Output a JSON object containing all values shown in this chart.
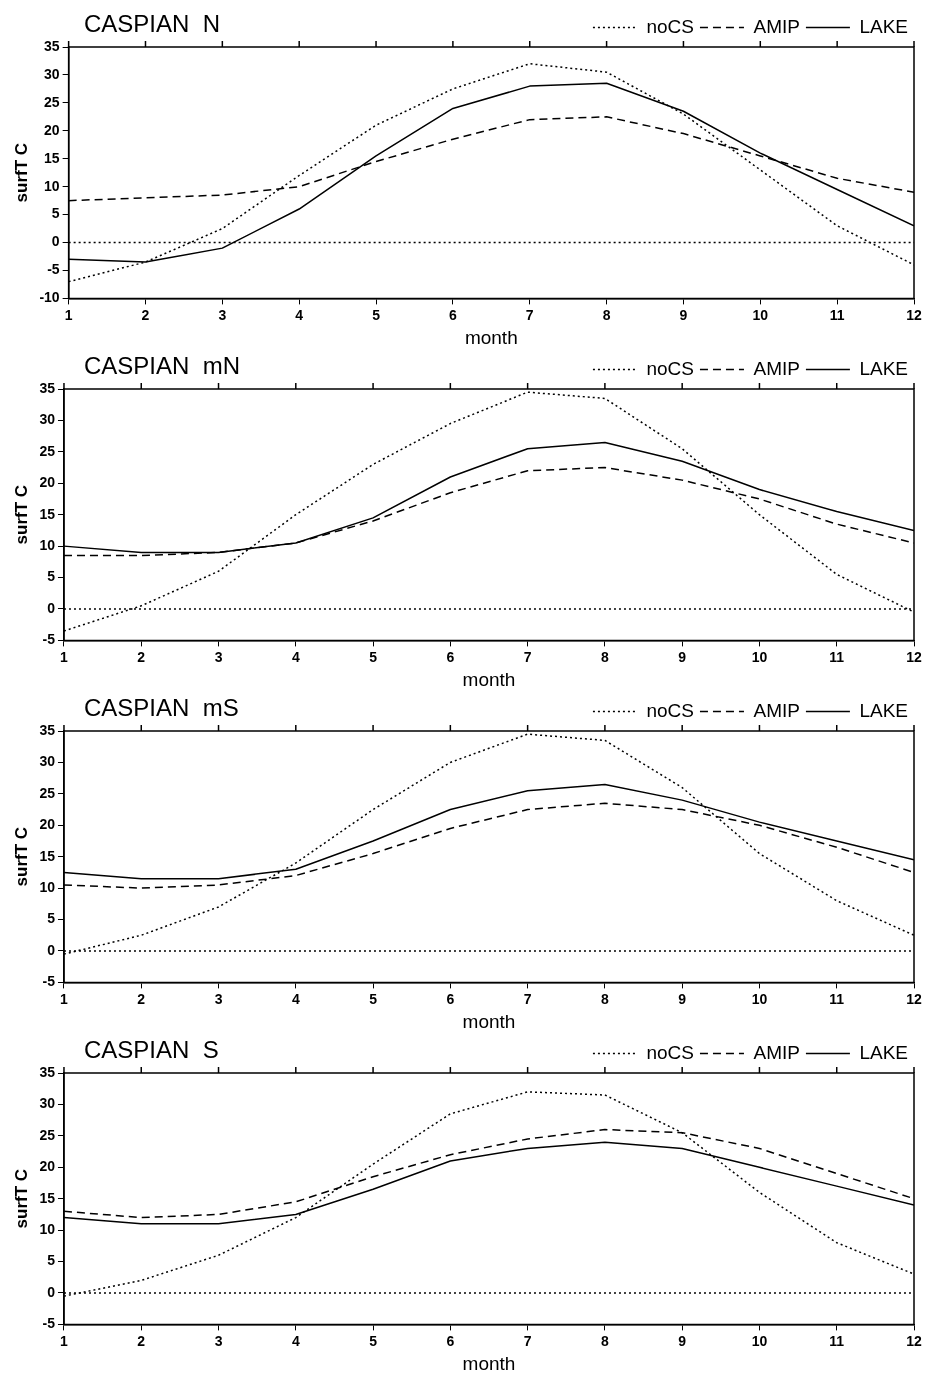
{
  "chart_data": [
    {
      "type": "line",
      "title": "CASPIAN  N",
      "xlabel": "month",
      "ylabel": "surfT C",
      "x": [
        1,
        2,
        3,
        4,
        5,
        6,
        7,
        8,
        9,
        10,
        11,
        12
      ],
      "xlim": [
        1,
        12
      ],
      "xticks": [
        1,
        2,
        3,
        4,
        5,
        6,
        7,
        8,
        9,
        10,
        11,
        12
      ],
      "ylim": [
        -10,
        35
      ],
      "yticks": [
        -10,
        -5,
        0,
        5,
        10,
        15,
        20,
        25,
        30,
        35
      ],
      "legend": "top right",
      "grid": false,
      "marker": "none",
      "ref_lines": [
        {
          "axis": "y",
          "value": 0,
          "line_style": "dotted"
        }
      ],
      "series": [
        {
          "name": "noCS",
          "color": "#000000",
          "line_style": "dotted",
          "values": [
            -7,
            -3.5,
            2.5,
            12,
            21,
            27.5,
            32,
            30.5,
            23,
            13,
            3,
            -4
          ]
        },
        {
          "name": "AMIP",
          "color": "#000000",
          "line_style": "dashed",
          "values": [
            7.5,
            8,
            8.5,
            10,
            14.5,
            18.5,
            22,
            22.5,
            19.5,
            15.5,
            11.5,
            9
          ]
        },
        {
          "name": "LAKE",
          "color": "#000000",
          "line_style": "solid",
          "values": [
            -3,
            -3.5,
            -1,
            6,
            15.5,
            24,
            28,
            28.5,
            23.5,
            16,
            9.5,
            3
          ]
        }
      ]
    },
    {
      "type": "line",
      "title": "CASPIAN  mN",
      "xlabel": "month",
      "ylabel": "surfT C",
      "x": [
        1,
        2,
        3,
        4,
        5,
        6,
        7,
        8,
        9,
        10,
        11,
        12
      ],
      "xlim": [
        1,
        12
      ],
      "xticks": [
        1,
        2,
        3,
        4,
        5,
        6,
        7,
        8,
        9,
        10,
        11,
        12
      ],
      "ylim": [
        -5,
        35
      ],
      "yticks": [
        -5,
        0,
        5,
        10,
        15,
        20,
        25,
        30,
        35
      ],
      "legend": "top right",
      "grid": false,
      "marker": "none",
      "ref_lines": [
        {
          "axis": "y",
          "value": 0,
          "line_style": "dotted"
        }
      ],
      "series": [
        {
          "name": "noCS",
          "color": "#000000",
          "line_style": "dotted",
          "values": [
            -3.5,
            0.5,
            6,
            15,
            23,
            29.5,
            34.5,
            33.5,
            25.5,
            15,
            5.5,
            -0.5
          ]
        },
        {
          "name": "AMIP",
          "color": "#000000",
          "line_style": "dashed",
          "values": [
            8.5,
            8.5,
            9,
            10.5,
            14,
            18.5,
            22,
            22.5,
            20.5,
            17.5,
            13.5,
            10.5
          ]
        },
        {
          "name": "LAKE",
          "color": "#000000",
          "line_style": "solid",
          "values": [
            10,
            9,
            9,
            10.5,
            14.5,
            21,
            25.5,
            26.5,
            23.5,
            19,
            15.5,
            12.5
          ]
        }
      ]
    },
    {
      "type": "line",
      "title": "CASPIAN  mS",
      "xlabel": "month",
      "ylabel": "surfT C",
      "x": [
        1,
        2,
        3,
        4,
        5,
        6,
        7,
        8,
        9,
        10,
        11,
        12
      ],
      "xlim": [
        1,
        12
      ],
      "xticks": [
        1,
        2,
        3,
        4,
        5,
        6,
        7,
        8,
        9,
        10,
        11,
        12
      ],
      "ylim": [
        -5,
        35
      ],
      "yticks": [
        -5,
        0,
        5,
        10,
        15,
        20,
        25,
        30,
        35
      ],
      "legend": "top right",
      "grid": false,
      "marker": "none",
      "ref_lines": [
        {
          "axis": "y",
          "value": 0,
          "line_style": "dotted"
        }
      ],
      "series": [
        {
          "name": "noCS",
          "color": "#000000",
          "line_style": "dotted",
          "values": [
            -0.5,
            2.5,
            7,
            14,
            22.5,
            30,
            34.5,
            33.5,
            26,
            15.5,
            8,
            2.5
          ]
        },
        {
          "name": "AMIP",
          "color": "#000000",
          "line_style": "dashed",
          "values": [
            10.5,
            10,
            10.5,
            12,
            15.5,
            19.5,
            22.5,
            23.5,
            22.5,
            20,
            16.5,
            12.5
          ]
        },
        {
          "name": "LAKE",
          "color": "#000000",
          "line_style": "solid",
          "values": [
            12.5,
            11.5,
            11.5,
            13,
            17.5,
            22.5,
            25.5,
            26.5,
            24,
            20.5,
            17.5,
            14.5
          ]
        }
      ]
    },
    {
      "type": "line",
      "title": "CASPIAN  S",
      "xlabel": "month",
      "ylabel": "surfT C",
      "x": [
        1,
        2,
        3,
        4,
        5,
        6,
        7,
        8,
        9,
        10,
        11,
        12
      ],
      "xlim": [
        1,
        12
      ],
      "xticks": [
        1,
        2,
        3,
        4,
        5,
        6,
        7,
        8,
        9,
        10,
        11,
        12
      ],
      "ylim": [
        -5,
        35
      ],
      "yticks": [
        -5,
        0,
        5,
        10,
        15,
        20,
        25,
        30,
        35
      ],
      "legend": "top right",
      "grid": false,
      "marker": "none",
      "ref_lines": [
        {
          "axis": "y",
          "value": 0,
          "line_style": "dotted"
        }
      ],
      "series": [
        {
          "name": "noCS",
          "color": "#000000",
          "line_style": "dotted",
          "values": [
            -0.5,
            2,
            6,
            12,
            20.5,
            28.5,
            32,
            31.5,
            25.5,
            16,
            8,
            3
          ]
        },
        {
          "name": "AMIP",
          "color": "#000000",
          "line_style": "dashed",
          "values": [
            13,
            12,
            12.5,
            14.5,
            18.5,
            22,
            24.5,
            26,
            25.5,
            23,
            19,
            15
          ]
        },
        {
          "name": "LAKE",
          "color": "#000000",
          "line_style": "solid",
          "values": [
            12,
            11,
            11,
            12.5,
            16.5,
            21,
            23,
            24,
            23,
            20,
            17,
            14
          ]
        }
      ]
    }
  ]
}
